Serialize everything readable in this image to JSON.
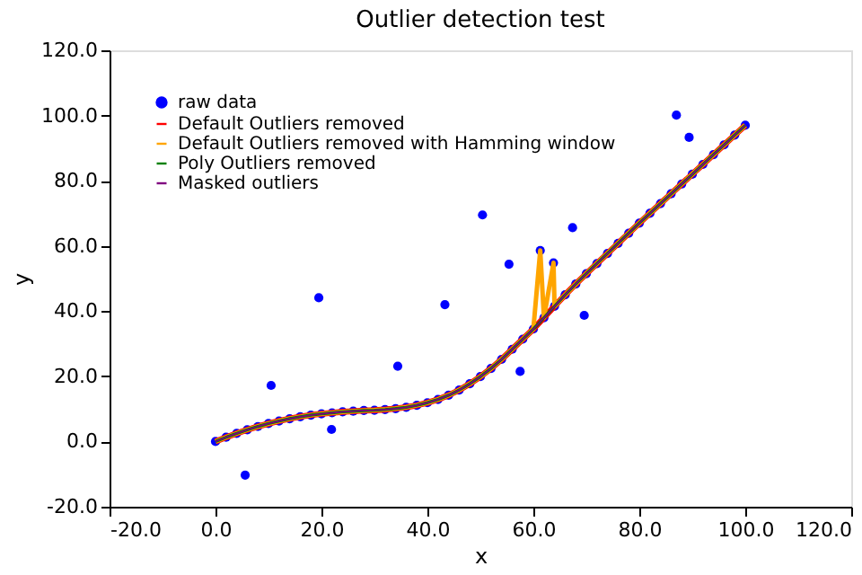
{
  "chart_data": {
    "type": "line",
    "title": "Outlier detection test",
    "xlabel": "x",
    "ylabel": "y",
    "xlim": [
      -20,
      120
    ],
    "ylim": [
      -20,
      120
    ],
    "xticks": [
      {
        "value": -20,
        "label": "-20.0"
      },
      {
        "value": 0,
        "label": "0.0"
      },
      {
        "value": 20,
        "label": "20.0"
      },
      {
        "value": 40,
        "label": "40.0"
      },
      {
        "value": 60,
        "label": "60.0"
      },
      {
        "value": 80,
        "label": "80.0"
      },
      {
        "value": 100,
        "label": "100.0"
      },
      {
        "value": 120,
        "label": "120.0"
      }
    ],
    "yticks": [
      {
        "value": -20,
        "label": "-20.0"
      },
      {
        "value": 0,
        "label": "0.0"
      },
      {
        "value": 20,
        "label": "20.0"
      },
      {
        "value": 40,
        "label": "40.0"
      },
      {
        "value": 60,
        "label": "60.0"
      },
      {
        "value": 80,
        "label": "80.0"
      },
      {
        "value": 100,
        "label": "100.0"
      },
      {
        "value": 120,
        "label": "120.0"
      }
    ],
    "grid": false,
    "legend": "top left",
    "x": [
      0,
      2,
      4,
      6,
      8,
      10,
      12,
      14,
      16,
      18,
      20,
      22,
      24,
      26,
      28,
      30,
      32,
      34,
      36,
      38,
      40,
      42,
      44,
      46,
      48,
      50,
      52,
      54,
      56,
      58,
      60,
      62,
      64,
      66,
      68,
      70,
      72,
      74,
      76,
      78,
      80,
      82,
      84,
      86,
      88,
      90,
      92,
      94,
      96,
      98,
      100
    ],
    "series": [
      {
        "name": "raw data",
        "type": "scatter",
        "marker": "circle",
        "color": "#0000ff",
        "x": [
          0,
          2,
          4,
          5.6,
          6,
          8,
          10,
          10.5,
          12,
          14,
          16,
          18,
          19.5,
          20,
          21.9,
          22,
          24,
          26,
          28,
          30,
          32,
          34,
          34.4,
          36,
          38,
          40,
          42,
          43.3,
          44,
          46,
          48,
          50,
          50.4,
          52,
          54,
          55.4,
          56,
          57.5,
          58,
          60,
          61.3,
          62,
          63.8,
          64,
          66,
          67.4,
          68,
          69.6,
          70,
          72,
          74,
          76,
          78,
          80,
          82,
          84,
          86,
          87.0,
          88,
          89.4,
          90,
          92,
          94,
          96,
          98,
          100
        ],
        "values": [
          0,
          1.3,
          2.5,
          -10.3,
          3.6,
          4.6,
          5.5,
          17.2,
          6.3,
          7.0,
          7.6,
          8.1,
          44.1,
          8.5,
          3.7,
          8.8,
          9.1,
          9.3,
          9.5,
          9.6,
          9.8,
          10.1,
          23.1,
          10.5,
          11.1,
          11.9,
          12.9,
          42.0,
          14.2,
          15.8,
          17.7,
          19.9,
          69.5,
          22.4,
          25.2,
          54.4,
          28.3,
          21.5,
          31.4,
          34.5,
          58.6,
          38.0,
          54.8,
          41.5,
          45.0,
          65.6,
          48.3,
          38.7,
          51.5,
          54.6,
          57.7,
          60.8,
          63.9,
          67.0,
          70.0,
          73.0,
          76.0,
          100.1,
          79.0,
          93.3,
          82.0,
          85.0,
          88.0,
          91.0,
          94.0,
          97.0
        ]
      },
      {
        "name": "Default Outliers removed",
        "color": "#ff0000",
        "values": [
          0,
          1.3,
          2.5,
          3.6,
          4.6,
          5.5,
          6.3,
          7.0,
          7.6,
          8.1,
          8.5,
          8.8,
          9.1,
          9.3,
          9.5,
          9.6,
          9.8,
          10.1,
          10.5,
          11.1,
          11.9,
          12.9,
          14.2,
          15.8,
          17.7,
          19.9,
          22.4,
          25.2,
          28.3,
          31.4,
          34.5,
          38.0,
          41.5,
          45.0,
          48.3,
          51.5,
          54.6,
          57.7,
          60.8,
          63.9,
          67.0,
          70.0,
          73.0,
          76.0,
          79.0,
          82.0,
          85.0,
          88.0,
          91.0,
          94.0,
          97.0
        ]
      },
      {
        "name": "Default Outliers removed with Hamming window",
        "color": "#ffa500",
        "x": [
          0,
          2,
          4,
          6,
          8,
          10,
          12,
          14,
          16,
          18,
          20,
          22,
          24,
          26,
          28,
          30,
          32,
          34,
          36,
          38,
          40,
          42,
          44,
          46,
          48,
          50,
          52,
          54,
          56,
          58,
          60,
          61.3,
          62,
          63.8,
          64,
          66,
          68,
          70,
          72,
          74,
          76,
          78,
          80,
          82,
          84,
          86,
          88,
          90,
          92,
          94,
          96,
          98,
          100
        ],
        "values": [
          0,
          1.3,
          2.5,
          3.6,
          4.6,
          5.5,
          6.3,
          7.0,
          7.6,
          8.1,
          8.5,
          8.8,
          9.1,
          9.3,
          9.5,
          9.6,
          9.8,
          10.1,
          10.5,
          11.1,
          11.9,
          12.9,
          14.2,
          15.8,
          17.7,
          19.9,
          22.4,
          25.2,
          28.3,
          31.4,
          34.5,
          58.6,
          38.0,
          54.8,
          41.5,
          45.0,
          48.3,
          51.5,
          54.6,
          57.7,
          60.8,
          63.9,
          67.0,
          70.0,
          73.0,
          76.0,
          79.0,
          82.0,
          85.0,
          88.0,
          91.0,
          94.0,
          97.0
        ]
      },
      {
        "name": "Poly Outliers removed",
        "color": "#008000",
        "values": [
          0,
          1.3,
          2.5,
          3.6,
          4.6,
          5.5,
          6.3,
          7.0,
          7.6,
          8.1,
          8.5,
          8.8,
          9.1,
          9.3,
          9.5,
          9.6,
          9.8,
          10.1,
          10.5,
          11.1,
          11.9,
          12.9,
          14.2,
          15.8,
          17.7,
          19.9,
          22.4,
          25.2,
          28.3,
          31.4,
          34.5,
          38.0,
          41.5,
          45.0,
          48.3,
          51.5,
          54.6,
          57.7,
          60.8,
          63.9,
          67.0,
          70.0,
          73.0,
          76.0,
          79.0,
          82.0,
          85.0,
          88.0,
          91.0,
          94.0,
          97.0
        ]
      },
      {
        "name": "Masked outliers",
        "color": "#800080",
        "values": [
          0,
          1.3,
          2.5,
          3.6,
          4.6,
          5.5,
          6.3,
          7.0,
          7.6,
          8.1,
          8.5,
          8.8,
          9.1,
          9.3,
          9.5,
          9.6,
          9.8,
          10.1,
          10.5,
          11.1,
          11.9,
          12.9,
          14.2,
          15.8,
          17.7,
          19.9,
          22.4,
          25.2,
          28.3,
          31.4,
          34.5,
          38.0,
          41.5,
          45.0,
          48.3,
          51.5,
          54.6,
          57.7,
          60.8,
          63.9,
          67.0,
          70.0,
          73.0,
          76.0,
          79.0,
          82.0,
          85.0,
          88.0,
          91.0,
          94.0,
          97.0
        ]
      }
    ]
  }
}
